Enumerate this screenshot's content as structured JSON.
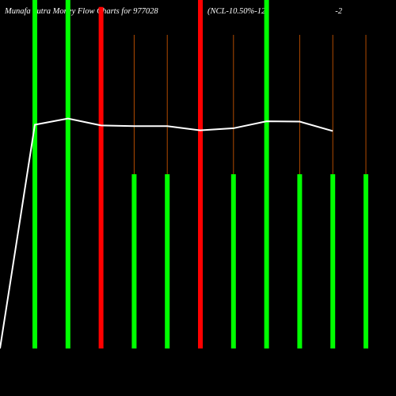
{
  "title": {
    "left_text": "Munafa Sutra  Money Flow  Charts for 977028",
    "right_text_a": "(NCL-10.50%-12",
    "right_text_b": "-2"
  },
  "colors": {
    "background": "#000000",
    "bull": "#00ff00",
    "bear": "#ff0000",
    "wick": "#b14a00",
    "line": "#ffffff",
    "text": "#ffffff"
  },
  "chart_data": {
    "type": "bar",
    "categories": [
      "",
      "",
      "",
      "",
      "",
      "",
      "",
      "",
      "",
      "",
      ""
    ],
    "series": [
      {
        "values": [
          100,
          100,
          98,
          50,
          50,
          100,
          50,
          100,
          50,
          50,
          50
        ],
        "colors": [
          "green",
          "green",
          "red",
          "green",
          "green",
          "red",
          "green",
          "green",
          "green",
          "green",
          "green"
        ],
        "wick_top": [
          100,
          100,
          98,
          90,
          90,
          100,
          90,
          100,
          90,
          90,
          90
        ]
      },
      {
        "type": "line",
        "values": [
          0,
          64.2,
          66.0,
          64.0,
          63.8,
          63.8,
          62.6,
          63.2,
          65.2,
          65.1,
          62.4
        ]
      }
    ],
    "ylim": [
      0,
      100
    ],
    "grid": false,
    "legend": "none"
  }
}
